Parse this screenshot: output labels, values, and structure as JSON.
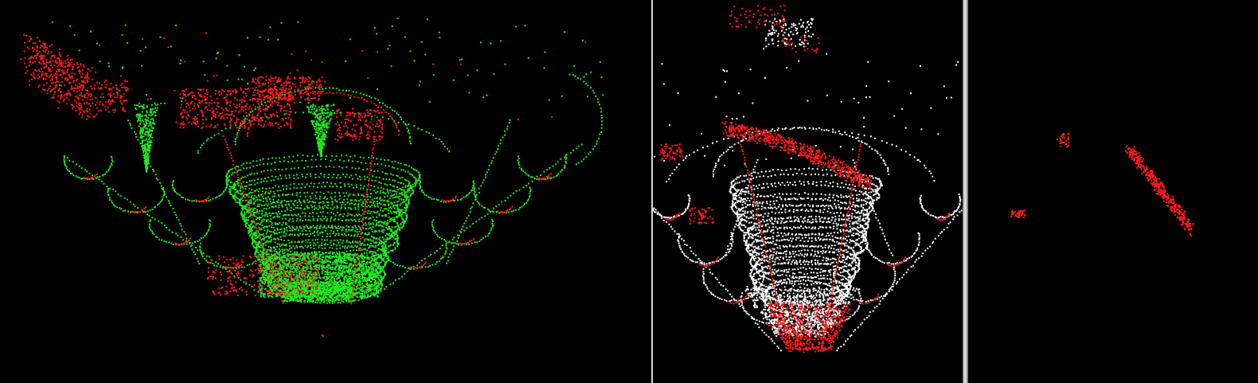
{
  "colors": {
    "background": "#000000",
    "ground_points": "#ff1a1a",
    "cloud_points_left": "#22e622",
    "cloud_points_mid": "#ffffff",
    "divider": "#d8d8d8"
  },
  "panels": [
    {
      "name": "left-viewport",
      "content": "green-and-red-point-cloud"
    },
    {
      "name": "middle-viewport",
      "content": "white-and-red-point-cloud"
    },
    {
      "name": "right-viewport",
      "content": "red-point-cluster"
    }
  ]
}
